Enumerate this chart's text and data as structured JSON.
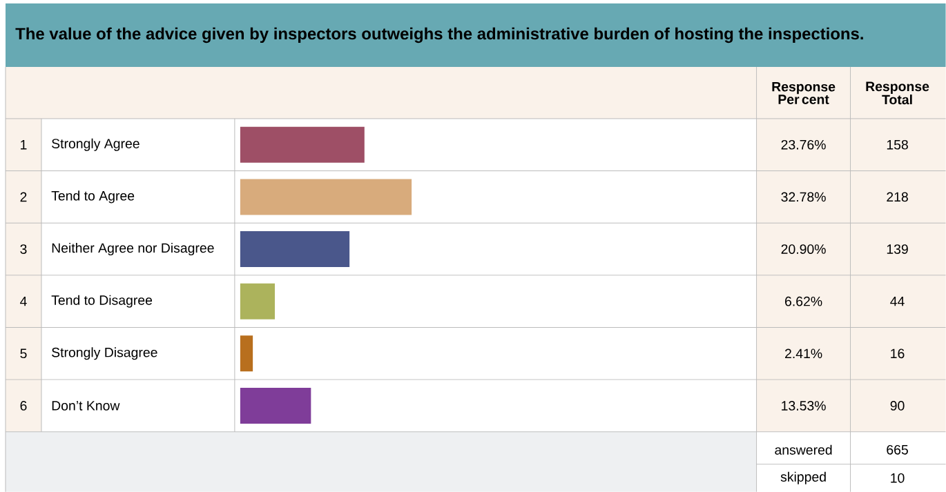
{
  "chart_data": {
    "type": "bar",
    "orientation": "horizontal",
    "title": "The value of the advice given by inspectors outweighs the administrative burden of hosting the inspections.",
    "categories": [
      "Strongly Agree",
      "Tend to Agree",
      "Neither Agree nor Disagree",
      "Tend to Disagree",
      "Strongly Disagree",
      "Don’t Know"
    ],
    "values": [
      23.76,
      32.78,
      20.9,
      6.62,
      2.41,
      13.53
    ],
    "colors": [
      "#9e4f66",
      "#d8ab7c",
      "#4a578b",
      "#acb35c",
      "#b86f1e",
      "#7f3d99"
    ],
    "value_labels": [
      "23.76%",
      "32.78%",
      "20.90%",
      "6.62%",
      "2.41%",
      "13.53%"
    ],
    "annotations": [
      "Response Per cent",
      "Response Total",
      "1",
      "2",
      "3",
      "4",
      "5",
      "6",
      "158",
      "218",
      "139",
      "44",
      "16",
      "90",
      "answered",
      "665",
      "skipped",
      "10"
    ]
  }
}
